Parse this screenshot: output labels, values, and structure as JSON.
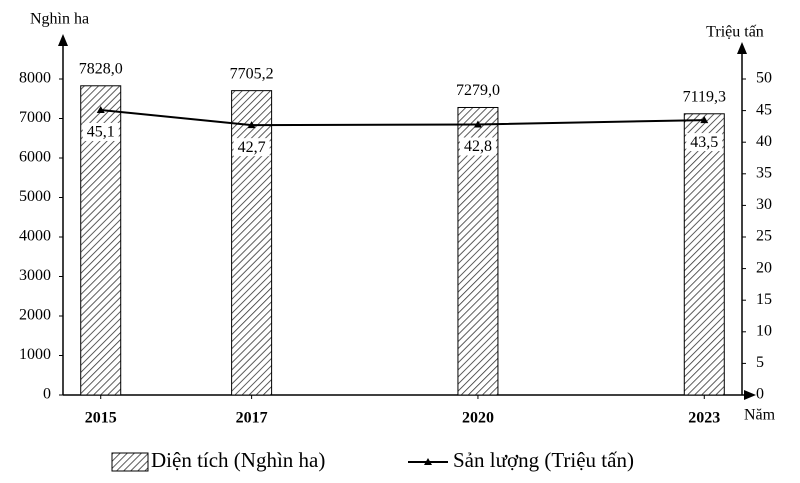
{
  "chart_data": {
    "type": "combo",
    "x": [
      2015,
      2017,
      2020,
      2023
    ],
    "xlim": [
      2014.5,
      2023.5
    ],
    "xticks": [
      2015,
      2017,
      2020,
      2023
    ],
    "x_label": "Năm",
    "y_label": "Nghìn ha",
    "y2_label": "Triệu tấn",
    "ylim": [
      0,
      9000
    ],
    "yticks": [
      0,
      1000,
      2000,
      3000,
      4000,
      5000,
      6000,
      7000,
      8000
    ],
    "y2lim": [
      0,
      56.25
    ],
    "y2ticks": [
      0,
      5,
      10,
      15,
      20,
      25,
      30,
      35,
      40,
      45,
      50
    ],
    "series": [
      {
        "name": "Diện tích (Nghìn ha)",
        "type": "bar",
        "pattern": "hatch",
        "color": "#000000",
        "values": [
          7828,
          7705.2,
          7279,
          7119.3
        ],
        "value_labels": [
          "7828,0",
          "7705,2",
          "7279,0",
          "7119,3"
        ]
      },
      {
        "name": "Sản lượng (Triệu tấn)",
        "type": "line",
        "axis": "y2",
        "color": "#000000",
        "values": [
          45.1,
          42.7,
          42.8,
          43.5
        ],
        "value_labels": [
          "45,1",
          "42,7",
          "42,8",
          "43,5"
        ]
      }
    ]
  }
}
